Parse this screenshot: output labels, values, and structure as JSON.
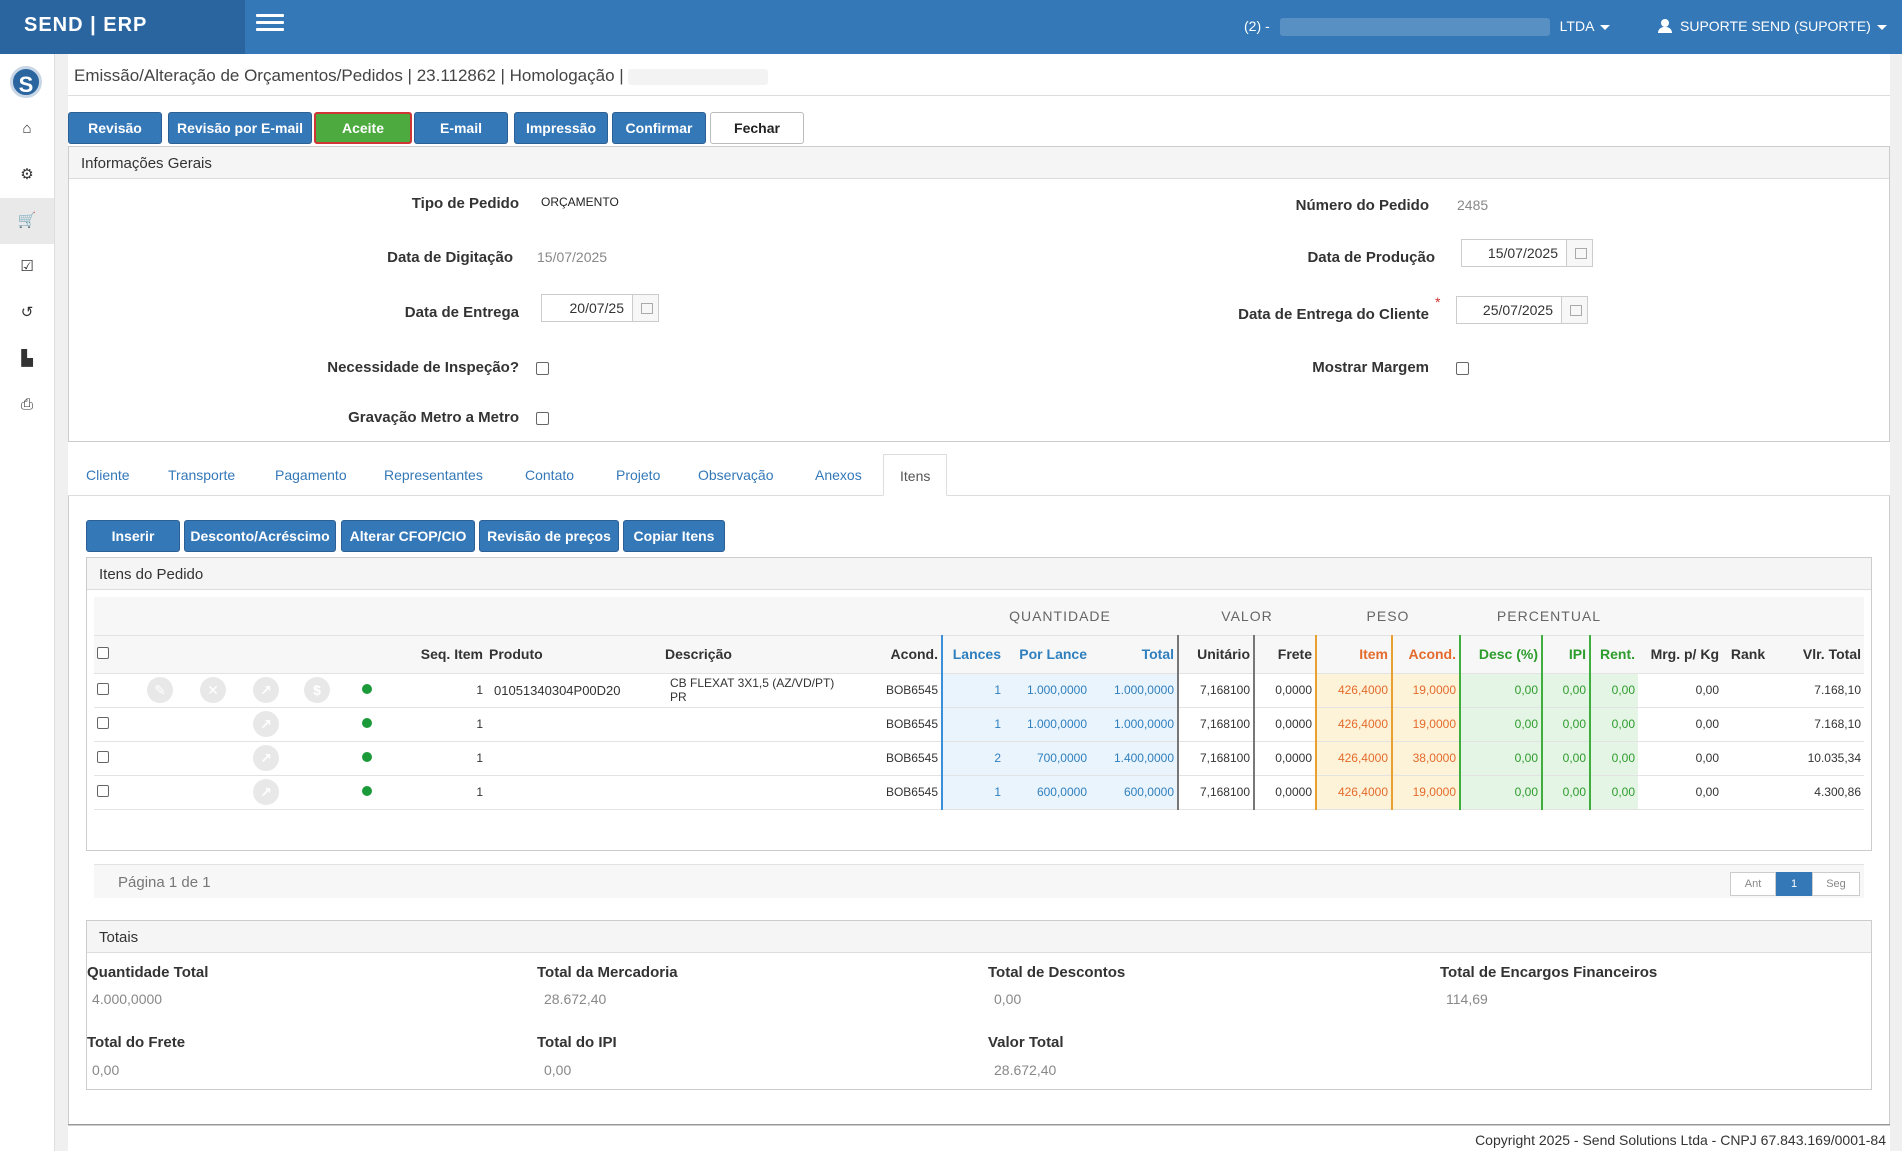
{
  "app": {
    "brand": "SEND | ERP"
  },
  "topbar": {
    "company_prefix": "(2) -",
    "company_suffix": "LTDA",
    "user": "SUPORTE SEND (SUPORTE)"
  },
  "sidebar": {
    "logo_letter": "S"
  },
  "page": {
    "title": "Emissão/Alteração de Orçamentos/Pedidos | 23.112862 | Homologação |"
  },
  "toolbar": {
    "revisao": "Revisão",
    "revisao_email": "Revisão por E-mail",
    "aceite": "Aceite",
    "email": "E-mail",
    "impressao": "Impressão",
    "confirmar": "Confirmar",
    "fechar": "Fechar"
  },
  "info": {
    "header": "Informações Gerais",
    "tipo_pedido_label": "Tipo de Pedido",
    "tipo_pedido": "ORÇAMENTO",
    "numero_pedido_label": "Número do Pedido",
    "numero_pedido": "2485",
    "data_digitacao_label": "Data de Digitação",
    "data_digitacao": "15/07/2025",
    "data_producao_label": "Data de Produção",
    "data_producao": "15/07/2025",
    "data_entrega_label": "Data de Entrega",
    "data_entrega": "20/07/25",
    "data_entrega_cliente_label": "Data de Entrega do Cliente",
    "data_entrega_cliente": "25/07/2025",
    "required_mark": "*",
    "inspecao_label": "Necessidade de Inspeção?",
    "mostrar_margem_label": "Mostrar Margem",
    "gravacao_label": "Gravação Metro a Metro"
  },
  "tabs": [
    "Cliente",
    "Transporte",
    "Pagamento",
    "Representantes",
    "Contato",
    "Projeto",
    "Observação",
    "Anexos",
    "Itens"
  ],
  "items_toolbar": {
    "inserir": "Inserir",
    "desconto": "Desconto/Acréscimo",
    "cfop": "Alterar CFOP/CIO",
    "revisao_precos": "Revisão de preços",
    "copiar": "Copiar Itens"
  },
  "items": {
    "header": "Itens do Pedido",
    "groups": {
      "quantidade": "QUANTIDADE",
      "valor": "VALOR",
      "peso": "PESO",
      "percentual": "PERCENTUAL"
    },
    "columns": {
      "seq": "Seq. Item",
      "produto": "Produto",
      "descricao": "Descrição",
      "acond": "Acond.",
      "lances": "Lances",
      "por_lance": "Por Lance",
      "total": "Total",
      "unitario": "Unitário",
      "frete": "Frete",
      "item": "Item",
      "acond_peso": "Acond.",
      "desc": "Desc (%)",
      "ipi": "IPI",
      "rent": "Rent.",
      "mrg": "Mrg. p/ Kg",
      "rank": "Rank",
      "vlr_total": "Vlr. Total"
    },
    "icons": {
      "edit": "✎",
      "delete": "✕",
      "chart": "↗",
      "money": "$"
    },
    "rows": [
      {
        "seq": "1",
        "produto": "01051340304P00D20",
        "descricao": "CB FLEXAT 3X1,5 (AZ/VD/PT) PR",
        "acond": "BOB6545",
        "lances": "1",
        "por_lance": "1.000,0000",
        "total": "1.000,0000",
        "unitario": "7,168100",
        "frete": "0,0000",
        "item": "426,4000",
        "acond_peso": "19,0000",
        "desc": "0,00",
        "ipi": "0,00",
        "rent": "0,00",
        "mrg": "0,00",
        "rank": "",
        "vlr_total": "7.168,10"
      },
      {
        "seq": "1",
        "produto": "",
        "descricao": "",
        "acond": "BOB6545",
        "lances": "1",
        "por_lance": "1.000,0000",
        "total": "1.000,0000",
        "unitario": "7,168100",
        "frete": "0,0000",
        "item": "426,4000",
        "acond_peso": "19,0000",
        "desc": "0,00",
        "ipi": "0,00",
        "rent": "0,00",
        "mrg": "0,00",
        "rank": "",
        "vlr_total": "7.168,10"
      },
      {
        "seq": "1",
        "produto": "",
        "descricao": "",
        "acond": "BOB6545",
        "lances": "2",
        "por_lance": "700,0000",
        "total": "1.400,0000",
        "unitario": "7,168100",
        "frete": "0,0000",
        "item": "426,4000",
        "acond_peso": "38,0000",
        "desc": "0,00",
        "ipi": "0,00",
        "rent": "0,00",
        "mrg": "0,00",
        "rank": "",
        "vlr_total": "10.035,34"
      },
      {
        "seq": "1",
        "produto": "",
        "descricao": "",
        "acond": "BOB6545",
        "lances": "1",
        "por_lance": "600,0000",
        "total": "600,0000",
        "unitario": "7,168100",
        "frete": "0,0000",
        "item": "426,4000",
        "acond_peso": "19,0000",
        "desc": "0,00",
        "ipi": "0,00",
        "rent": "0,00",
        "mrg": "0,00",
        "rank": "",
        "vlr_total": "4.300,86"
      }
    ],
    "pagination": {
      "text": "Página 1 de 1",
      "prev": "Ant",
      "current": "1",
      "next": "Seg"
    }
  },
  "totais": {
    "header": "Totais",
    "quantidade_total_label": "Quantidade Total",
    "quantidade_total": "4.000,0000",
    "total_mercadoria_label": "Total da Mercadoria",
    "total_mercadoria": "28.672,40",
    "total_descontos_label": "Total de Descontos",
    "total_descontos": "0,00",
    "total_encargos_label": "Total de Encargos Financeiros",
    "total_encargos": "114,69",
    "total_frete_label": "Total do Frete",
    "total_frete": "0,00",
    "total_ipi_label": "Total do IPI",
    "total_ipi": "0,00",
    "valor_total_label": "Valor Total",
    "valor_total": "28.672,40"
  },
  "footer": {
    "copyright": "Copyright 2025 - Send Solutions Ltda - CNPJ 67.843.169/0001-84"
  }
}
